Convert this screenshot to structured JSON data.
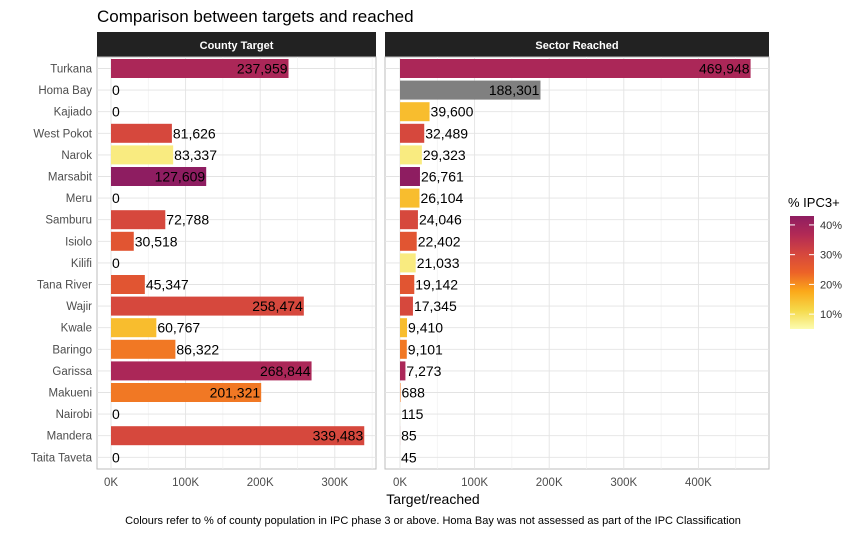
{
  "chart_data": {
    "type": "bar",
    "orientation": "horizontal",
    "title": "Comparison between targets and reached",
    "xlabel": "Target/reached",
    "caption": "Colours refer to % of county population in IPC phase 3 or above. Homa Bay was not assessed as part of the IPC Classification",
    "xlim": [
      0,
      470000
    ],
    "x_ticks": [
      "0K",
      "100K",
      "200K",
      "300K",
      "400K"
    ],
    "x_tick_values": [
      0,
      100000,
      200000,
      300000,
      400000
    ],
    "grid": true,
    "legend": {
      "title": "% IPC3+",
      "position": "right",
      "labels": [
        "40%",
        "30%",
        "20%",
        "10%"
      ],
      "label_values": [
        40,
        30,
        20,
        10
      ],
      "gradient_colors": [
        "#fcfcb0",
        "#f5d94a",
        "#fba91a",
        "#ec6228",
        "#d5473e",
        "#b32a55",
        "#8e1d61"
      ],
      "range": [
        5,
        43
      ]
    },
    "na_color": "#808080",
    "categories": [
      "Turkana",
      "Homa Bay",
      "Kajiado",
      "West Pokot",
      "Narok",
      "Marsabit",
      "Meru",
      "Samburu",
      "Isiolo",
      "Kilifi",
      "Tana River",
      "Wajir",
      "Kwale",
      "Baringo",
      "Garissa",
      "Makueni",
      "Nairobi",
      "Mandera",
      "Taita Taveta"
    ],
    "panels": [
      {
        "name": "County Target",
        "values": [
          237959,
          0,
          0,
          81626,
          83337,
          127609,
          0,
          72788,
          30518,
          0,
          45347,
          258474,
          60767,
          86322,
          268844,
          201321,
          0,
          339483,
          0
        ],
        "labels": [
          "237,959",
          "0",
          "0",
          "81,626",
          "83,337",
          "127,609",
          "0",
          "72,788",
          "30,518",
          "0",
          "45,347",
          "258,474",
          "60,767",
          "86,322",
          "268,844",
          "201,321",
          "0",
          "339,483",
          "0"
        ],
        "ipc3_pct": [
          38,
          null,
          15,
          30,
          8,
          43,
          15,
          30,
          27,
          8,
          27,
          30,
          15,
          22,
          38,
          22,
          5,
          30,
          8
        ]
      },
      {
        "name": "Sector Reached",
        "values": [
          469948,
          188301,
          39600,
          32489,
          29323,
          26761,
          26104,
          24046,
          22402,
          21033,
          19142,
          17345,
          9410,
          9101,
          7273,
          688,
          115,
          85,
          45
        ],
        "labels": [
          "469,948",
          "188,301",
          "39,600",
          "32,489",
          "29,323",
          "26,761",
          "26,104",
          "24,046",
          "22,402",
          "21,033",
          "19,142",
          "17,345",
          "9,410",
          "9,101",
          "7,273",
          "688",
          "115",
          "85",
          "45"
        ],
        "ipc3_pct": [
          38,
          null,
          15,
          30,
          8,
          43,
          15,
          30,
          27,
          8,
          27,
          30,
          15,
          22,
          38,
          22,
          5,
          30,
          8
        ]
      }
    ]
  }
}
